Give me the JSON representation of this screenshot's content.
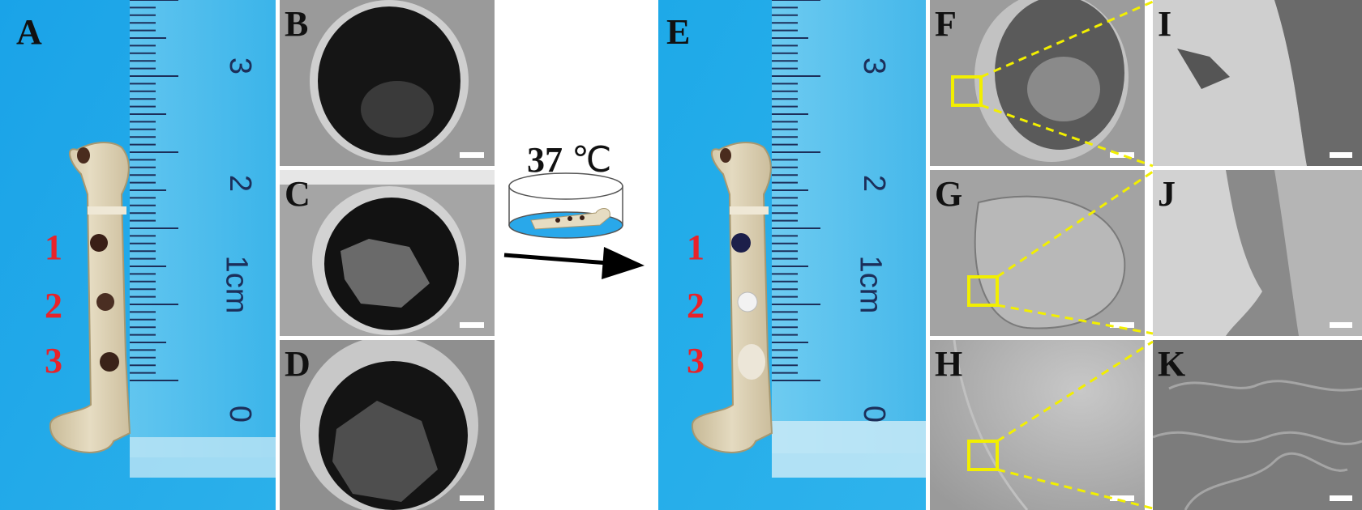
{
  "panels": {
    "A": {
      "label": "A",
      "ruler_ticks": [
        "3",
        "2",
        "1cm",
        "0"
      ],
      "holes": [
        "1",
        "2",
        "3"
      ]
    },
    "B": {
      "label": "B"
    },
    "C": {
      "label": "C"
    },
    "D": {
      "label": "D"
    },
    "E": {
      "label": "E",
      "ruler_ticks": [
        "3",
        "2",
        "1cm",
        "0"
      ],
      "holes": [
        "1",
        "2",
        "3"
      ]
    },
    "F": {
      "label": "F"
    },
    "G": {
      "label": "G"
    },
    "H": {
      "label": "H"
    },
    "I": {
      "label": "I"
    },
    "J": {
      "label": "J"
    },
    "K": {
      "label": "K"
    }
  },
  "incubation": {
    "temperature_value": "37",
    "temperature_unit": "℃"
  },
  "colors": {
    "background_blue": "#1fa6e6",
    "label_red": "#e8232a",
    "highlight_yellow": "#f2ef00",
    "bone": "#d9cdb0"
  }
}
